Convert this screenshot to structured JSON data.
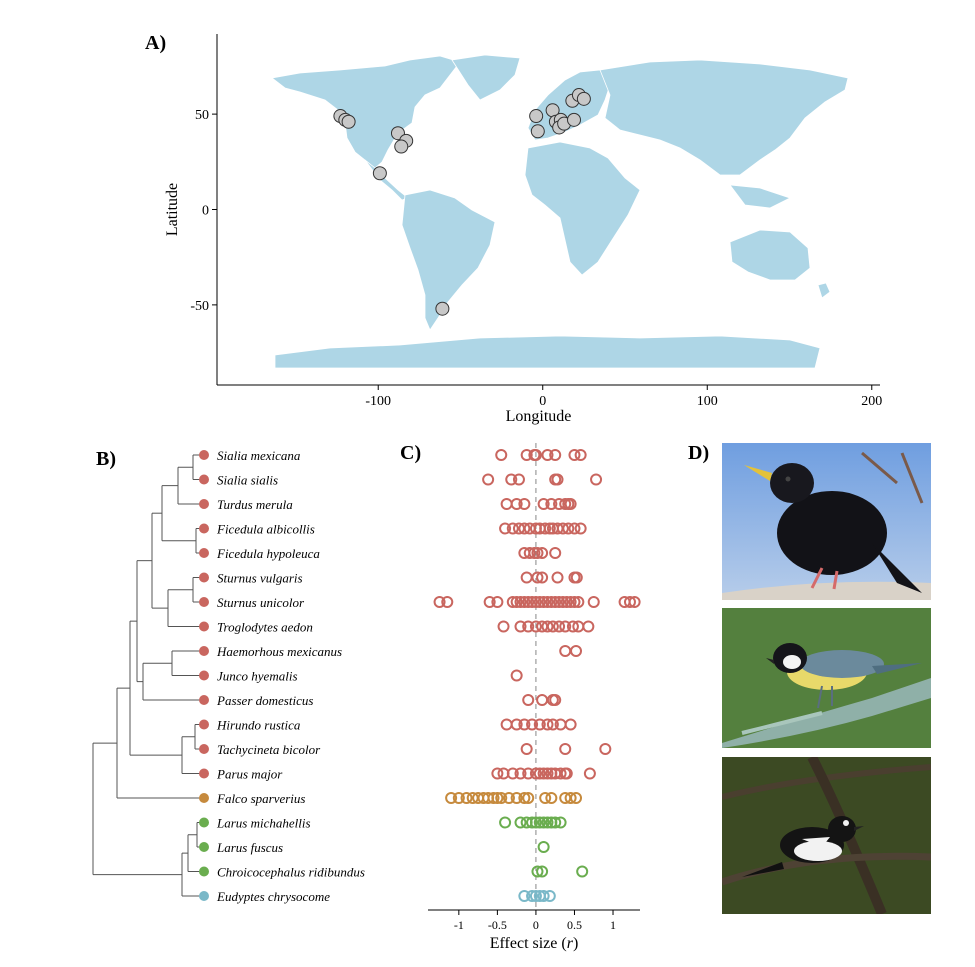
{
  "panels": {
    "a_label": "A)",
    "b_label": "B)",
    "c_label": "C)",
    "d_label": "D)"
  },
  "chart_data": [
    {
      "type": "scatter",
      "panel": "A",
      "xlabel": "Longitude",
      "ylabel": "Latitude",
      "xlim": [
        -198,
        205
      ],
      "ylim": [
        -92,
        92
      ],
      "x_ticks": [
        -100,
        0,
        100,
        200
      ],
      "y_ticks": [
        -50,
        0,
        50
      ],
      "map_fill": "#aed6e6",
      "point_fill": "#c8c8c8",
      "points": [
        {
          "lon": -123,
          "lat": 49
        },
        {
          "lon": -120,
          "lat": 47
        },
        {
          "lon": -118,
          "lat": 46
        },
        {
          "lon": -88,
          "lat": 40
        },
        {
          "lon": -83,
          "lat": 36
        },
        {
          "lon": -86,
          "lat": 33
        },
        {
          "lon": -99,
          "lat": 19
        },
        {
          "lon": -4,
          "lat": 49
        },
        {
          "lon": -3,
          "lat": 41
        },
        {
          "lon": 6,
          "lat": 52
        },
        {
          "lon": 8,
          "lat": 46
        },
        {
          "lon": 11,
          "lat": 47
        },
        {
          "lon": 10,
          "lat": 43
        },
        {
          "lon": 13,
          "lat": 45
        },
        {
          "lon": 18,
          "lat": 57
        },
        {
          "lon": 22,
          "lat": 60
        },
        {
          "lon": 25,
          "lat": 58
        },
        {
          "lon": 19,
          "lat": 47
        },
        {
          "lon": -61,
          "lat": -52
        }
      ]
    },
    {
      "type": "scatter",
      "panel": "C",
      "xlabel": "Effect size (r)",
      "xlabel_main": "Effect size (",
      "xlabel_var": "r",
      "xlabel_end": ")",
      "xlim": [
        -1.4,
        1.35
      ],
      "x_ticks": [
        "-1",
        "-0.5",
        "0",
        "0.5",
        "1"
      ],
      "x_tick_values": [
        -1,
        -0.5,
        0,
        0.5,
        1
      ],
      "colors": {
        "passerine": "#c9665f",
        "falcon": "#c68a3d",
        "gull": "#6aad4f",
        "penguin": "#7ab8c8"
      },
      "species": [
        {
          "name": "Sialia mexicana",
          "group": "passerine",
          "values": [
            -0.45,
            -0.12,
            -0.02,
            0.0,
            0.15,
            0.25,
            0.5,
            0.58
          ]
        },
        {
          "name": "Sialia sialis",
          "group": "passerine",
          "values": [
            -0.62,
            -0.32,
            -0.22,
            0.25,
            0.28,
            0.78
          ]
        },
        {
          "name": "Turdus merula",
          "group": "passerine",
          "values": [
            -0.38,
            -0.25,
            -0.15,
            0.1,
            0.2,
            0.3,
            0.38,
            0.42,
            0.45
          ]
        },
        {
          "name": "Ficedula albicollis",
          "group": "passerine",
          "values": [
            -0.4,
            -0.3,
            -0.22,
            -0.15,
            -0.08,
            0.0,
            0.05,
            0.12,
            0.18,
            0.22,
            0.28,
            0.35,
            0.42,
            0.5,
            0.58
          ]
        },
        {
          "name": "Ficedula hypoleuca",
          "group": "passerine",
          "values": [
            -0.15,
            -0.08,
            -0.02,
            0.02,
            0.08,
            0.25
          ]
        },
        {
          "name": "Sturnus vulgaris",
          "group": "passerine",
          "values": [
            -0.12,
            0.02,
            0.08,
            0.28,
            0.5,
            0.53
          ]
        },
        {
          "name": "Sturnus unicolor",
          "group": "passerine",
          "values": [
            -1.25,
            -1.15,
            -0.6,
            -0.5,
            -0.3,
            -0.25,
            -0.2,
            -0.15,
            -0.1,
            -0.05,
            0.0,
            0.05,
            0.1,
            0.15,
            0.2,
            0.25,
            0.3,
            0.35,
            0.4,
            0.45,
            0.5,
            0.55,
            0.75,
            1.15,
            1.22,
            1.28
          ]
        },
        {
          "name": "Troglodytes aedon",
          "group": "passerine",
          "values": [
            -0.42,
            -0.2,
            -0.1,
            0.0,
            0.08,
            0.15,
            0.22,
            0.3,
            0.38,
            0.48,
            0.55,
            0.68
          ]
        },
        {
          "name": "Haemorhous mexicanus",
          "group": "passerine",
          "values": [
            0.38,
            0.52
          ]
        },
        {
          "name": "Junco hyemalis",
          "group": "passerine",
          "values": [
            -0.25
          ]
        },
        {
          "name": "Passer domesticus",
          "group": "passerine",
          "values": [
            -0.1,
            0.08,
            0.22,
            0.25
          ]
        },
        {
          "name": "Hirundo rustica",
          "group": "passerine",
          "values": [
            -0.38,
            -0.25,
            -0.15,
            -0.05,
            0.05,
            0.15,
            0.22,
            0.32,
            0.45
          ]
        },
        {
          "name": "Tachycineta bicolor",
          "group": "passerine",
          "values": [
            -0.12,
            0.38,
            0.9
          ]
        },
        {
          "name": "Parus major",
          "group": "passerine",
          "values": [
            -0.5,
            -0.42,
            -0.3,
            -0.2,
            -0.1,
            0.0,
            0.05,
            0.1,
            0.15,
            0.2,
            0.25,
            0.32,
            0.38,
            0.4,
            0.7
          ]
        },
        {
          "name": "Falco sparverius",
          "group": "falcon",
          "values": [
            -1.1,
            -1.0,
            -0.9,
            -0.82,
            -0.75,
            -0.68,
            -0.62,
            -0.55,
            -0.5,
            -0.45,
            -0.35,
            -0.25,
            -0.15,
            -0.1,
            0.12,
            0.2,
            0.38,
            0.45,
            0.52
          ]
        },
        {
          "name": "Larus michahellis",
          "group": "gull",
          "values": [
            -0.4,
            -0.2,
            -0.12,
            -0.05,
            0.0,
            0.05,
            0.1,
            0.15,
            0.2,
            0.25,
            0.32
          ]
        },
        {
          "name": "Larus fuscus",
          "group": "gull",
          "values": [
            0.1
          ]
        },
        {
          "name": "Chroicocephalus ridibundus",
          "group": "gull",
          "values": [
            0.02,
            0.08,
            0.6
          ]
        },
        {
          "name": "Eudyptes chrysocome",
          "group": "penguin",
          "values": [
            -0.15,
            -0.05,
            0.0,
            0.05,
            0.1,
            0.18
          ]
        }
      ]
    }
  ],
  "photos": [
    {
      "subject": "starling"
    },
    {
      "subject": "great-tit"
    },
    {
      "subject": "pied-flycatcher"
    }
  ]
}
